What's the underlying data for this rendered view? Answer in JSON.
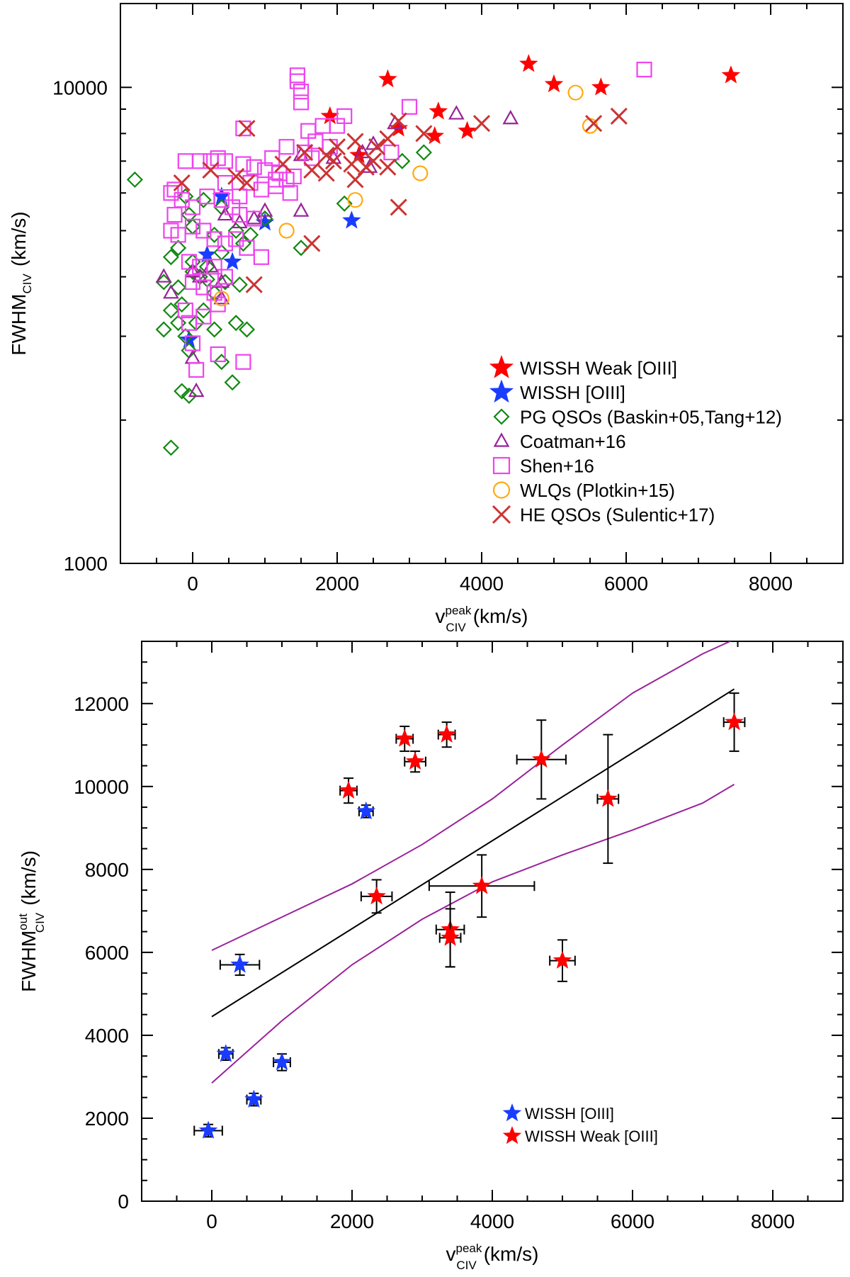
{
  "chart_data": [
    {
      "type": "scatter",
      "yscale": "log",
      "xlim": [
        -1000,
        9000
      ],
      "ylim": [
        1000,
        15000
      ],
      "xticks": [
        0,
        2000,
        4000,
        6000,
        8000
      ],
      "xtick_labels": [
        "0",
        "2000",
        "4000",
        "6000",
        "8000"
      ],
      "yticks": [
        1000,
        10000
      ],
      "ytick_labels": [
        "1000",
        "10000"
      ],
      "xlabel": {
        "base": "v",
        "sup": "peak",
        "sub": "CIV",
        "unit": "(km/s)"
      },
      "ylabel": {
        "base": "FWHM",
        "sub": "CIV",
        "unit": "(km/s)"
      },
      "legend_position": "bottom-right",
      "series": [
        {
          "name": "WISSH Weak [OIII]",
          "marker": "star",
          "color": "#ff0000",
          "points": [
            [
              4650,
              11200
            ],
            [
              7450,
              10600
            ],
            [
              2700,
              10400
            ],
            [
              5000,
              10150
            ],
            [
              5650,
              10000
            ],
            [
              1900,
              8700
            ],
            [
              3400,
              8900
            ],
            [
              2850,
              8200
            ],
            [
              3800,
              8100
            ],
            [
              3350,
              7900
            ],
            [
              2300,
              7200
            ]
          ]
        },
        {
          "name": "WISSH [OIII]",
          "marker": "star",
          "color": "#1a3cff",
          "points": [
            [
              400,
              5900
            ],
            [
              1000,
              5200
            ],
            [
              2200,
              5250
            ],
            [
              200,
              4450
            ],
            [
              550,
              4300
            ],
            [
              -50,
              2950
            ]
          ]
        },
        {
          "name": "PG QSOs (Baskin+05,Tang+12)",
          "marker": "diamond",
          "color": "#118811",
          "points": [
            [
              -800,
              6400
            ],
            [
              -100,
              5900
            ],
            [
              -50,
              5400
            ],
            [
              150,
              5800
            ],
            [
              300,
              4900
            ],
            [
              600,
              5000
            ],
            [
              -300,
              4400
            ],
            [
              -400,
              3900
            ],
            [
              -200,
              3800
            ],
            [
              0,
              4100
            ],
            [
              100,
              4000
            ],
            [
              200,
              3950
            ],
            [
              450,
              3900
            ],
            [
              650,
              3850
            ],
            [
              -150,
              3500
            ],
            [
              -300,
              3400
            ],
            [
              -200,
              3200
            ],
            [
              -400,
              3100
            ],
            [
              50,
              3200
            ],
            [
              300,
              3100
            ],
            [
              600,
              3200
            ],
            [
              750,
              3100
            ],
            [
              -100,
              3000
            ],
            [
              -50,
              2800
            ],
            [
              0,
              4300
            ],
            [
              200,
              4200
            ],
            [
              400,
              4500
            ],
            [
              700,
              4700
            ],
            [
              800,
              4900
            ],
            [
              1500,
              4600
            ],
            [
              2100,
              5700
            ],
            [
              2900,
              7000
            ],
            [
              3200,
              7300
            ],
            [
              400,
              2650
            ],
            [
              550,
              2400
            ],
            [
              -150,
              2300
            ],
            [
              -50,
              2250
            ],
            [
              -300,
              1750
            ],
            [
              -200,
              4600
            ],
            [
              0,
              5100
            ],
            [
              400,
              5600
            ],
            [
              1000,
              5300
            ],
            [
              300,
              3700
            ],
            [
              150,
              3400
            ]
          ]
        },
        {
          "name": "Coatman+16",
          "marker": "triangle",
          "color": "#992299",
          "points": [
            [
              -400,
              4000
            ],
            [
              -300,
              3700
            ],
            [
              100,
              4000
            ],
            [
              400,
              3600
            ],
            [
              400,
              3900
            ],
            [
              450,
              5400
            ],
            [
              650,
              5200
            ],
            [
              850,
              5300
            ],
            [
              1500,
              7200
            ],
            [
              1500,
              5500
            ],
            [
              1950,
              7100
            ],
            [
              2350,
              7300
            ],
            [
              2500,
              7600
            ],
            [
              2800,
              8400
            ],
            [
              3650,
              8800
            ],
            [
              4400,
              8600
            ],
            [
              0,
              2700
            ],
            [
              50,
              2300
            ],
            [
              0,
              4100
            ],
            [
              250,
              4200
            ],
            [
              2450,
              6800
            ],
            [
              1000,
              5500
            ]
          ]
        },
        {
          "name": "Shen+16",
          "marker": "square",
          "color": "#ee44ee",
          "points": [
            [
              1450,
              10600
            ],
            [
              1450,
              10300
            ],
            [
              1500,
              9800
            ],
            [
              1500,
              9300
            ],
            [
              3000,
              9100
            ],
            [
              6250,
              10900
            ],
            [
              1600,
              8100
            ],
            [
              1800,
              8300
            ],
            [
              700,
              8200
            ],
            [
              2000,
              8300
            ],
            [
              2100,
              8700
            ],
            [
              1300,
              7500
            ],
            [
              1550,
              7300
            ],
            [
              1700,
              7700
            ],
            [
              1900,
              7500
            ],
            [
              1100,
              7100
            ],
            [
              -100,
              7000
            ],
            [
              100,
              7000
            ],
            [
              250,
              7000
            ],
            [
              350,
              7100
            ],
            [
              450,
              7000
            ],
            [
              700,
              6900
            ],
            [
              850,
              6800
            ],
            [
              1000,
              6700
            ],
            [
              1200,
              6600
            ],
            [
              1300,
              6400
            ],
            [
              1400,
              6500
            ],
            [
              1150,
              6200
            ],
            [
              1350,
              6000
            ],
            [
              800,
              6300
            ],
            [
              950,
              6100
            ],
            [
              -250,
              6100
            ],
            [
              -150,
              5800
            ],
            [
              0,
              5600
            ],
            [
              200,
              5900
            ],
            [
              400,
              5800
            ],
            [
              550,
              5600
            ],
            [
              650,
              5400
            ],
            [
              850,
              5300
            ],
            [
              -250,
              5400
            ],
            [
              -300,
              5000
            ],
            [
              -200,
              4900
            ],
            [
              0,
              5100
            ],
            [
              150,
              5000
            ],
            [
              300,
              4800
            ],
            [
              450,
              4700
            ],
            [
              600,
              4800
            ],
            [
              750,
              4600
            ],
            [
              950,
              4400
            ],
            [
              -50,
              4300
            ],
            [
              100,
              4200
            ],
            [
              300,
              4200
            ],
            [
              450,
              4000
            ],
            [
              0,
              3900
            ],
            [
              150,
              3800
            ],
            [
              300,
              3700
            ],
            [
              350,
              3500
            ],
            [
              -100,
              3400
            ],
            [
              150,
              3300
            ],
            [
              -50,
              3200
            ],
            [
              0,
              2900
            ],
            [
              350,
              2750
            ],
            [
              700,
              2650
            ],
            [
              50,
              2550
            ],
            [
              1150,
              6400
            ],
            [
              1650,
              7100
            ],
            [
              2750,
              7300
            ],
            [
              -300,
              6000
            ],
            [
              450,
              6300
            ],
            [
              650,
              5900
            ]
          ]
        },
        {
          "name": "WLQs (Plotkin+15)",
          "marker": "circle",
          "color": "#ffaa11",
          "points": [
            [
              5300,
              9750
            ],
            [
              5500,
              8300
            ],
            [
              3150,
              6600
            ],
            [
              2250,
              5800
            ],
            [
              1300,
              5000
            ],
            [
              400,
              3600
            ]
          ]
        },
        {
          "name": "HE QSOs (Sulentic+17)",
          "marker": "cross",
          "color": "#cc3333",
          "points": [
            [
              750,
              8200
            ],
            [
              4000,
              8400
            ],
            [
              5900,
              8700
            ],
            [
              5550,
              8400
            ],
            [
              3200,
              8000
            ],
            [
              2850,
              8500
            ],
            [
              2700,
              7800
            ],
            [
              2550,
              7500
            ],
            [
              2250,
              7700
            ],
            [
              2000,
              7500
            ],
            [
              1850,
              7200
            ],
            [
              1550,
              7300
            ],
            [
              1250,
              6900
            ],
            [
              2200,
              6900
            ],
            [
              1650,
              6700
            ],
            [
              2700,
              6800
            ],
            [
              2500,
              7000
            ],
            [
              1850,
              6600
            ],
            [
              2250,
              6400
            ],
            [
              600,
              6500
            ],
            [
              750,
              6300
            ],
            [
              -150,
              6300
            ],
            [
              250,
              6700
            ],
            [
              1950,
              7000
            ],
            [
              2400,
              6800
            ],
            [
              2850,
              5600
            ],
            [
              1650,
              4700
            ],
            [
              850,
              3850
            ]
          ]
        }
      ]
    },
    {
      "type": "scatter",
      "xlim": [
        -1000,
        9000
      ],
      "ylim": [
        0,
        13500
      ],
      "xticks": [
        0,
        2000,
        4000,
        6000,
        8000
      ],
      "xtick_labels": [
        "0",
        "2000",
        "4000",
        "6000",
        "8000"
      ],
      "yticks": [
        0,
        2000,
        4000,
        6000,
        8000,
        10000,
        12000
      ],
      "ytick_labels": [
        "0",
        "2000",
        "4000",
        "6000",
        "8000",
        "10000",
        "12000"
      ],
      "xlabel": {
        "base": "v",
        "sup": "peak",
        "sub": "CIV",
        "unit": "(km/s)"
      },
      "ylabel": {
        "base": "FWHM",
        "sup": "out",
        "sub": "CIV",
        "unit": "(km/s)"
      },
      "legend_position": "bottom-center",
      "series": [
        {
          "name": "WISSH [OIII]",
          "marker": "star",
          "color": "#1a3cff",
          "points": [
            [
              -50,
              1700,
              200,
              150
            ],
            [
              200,
              3550,
              100,
              150
            ],
            [
              400,
              5700,
              280,
              250
            ],
            [
              600,
              2450,
              100,
              150
            ],
            [
              1000,
              3350,
              120,
              200
            ],
            [
              2200,
              9400,
              100,
              150
            ]
          ]
        },
        {
          "name": "WISSH Weak [OIII]",
          "marker": "star",
          "color": "#ff0000",
          "points": [
            [
              1950,
              9900,
              120,
              300
            ],
            [
              2350,
              7350,
              220,
              400
            ],
            [
              2750,
              11150,
              120,
              300
            ],
            [
              2900,
              10600,
              150,
              250
            ],
            [
              3350,
              11250,
              120,
              300
            ],
            [
              3400,
              6550,
              200,
              900
            ],
            [
              3400,
              6350,
              150,
              700
            ],
            [
              3850,
              7600,
              750,
              750
            ],
            [
              4700,
              10650,
              350,
              950
            ],
            [
              5650,
              9700,
              150,
              1550
            ],
            [
              5000,
              5800,
              180,
              500
            ],
            [
              7450,
              11550,
              150,
              700
            ]
          ]
        }
      ],
      "fit_line": {
        "name": "best fit",
        "color": "#000000",
        "x": [
          0,
          7450
        ],
        "y": [
          4450,
          12350
        ]
      },
      "confidence_band": {
        "color": "#992299",
        "upper": {
          "x": [
            0,
            1000,
            2000,
            3000,
            4000,
            5000,
            6000,
            7000,
            7650
          ],
          "y": [
            6050,
            6850,
            7650,
            8600,
            9700,
            11000,
            12250,
            13200,
            13700
          ]
        },
        "lower": {
          "x": [
            0,
            1000,
            2000,
            3000,
            4000,
            5000,
            6000,
            7000,
            7450
          ],
          "y": [
            2850,
            4350,
            5700,
            6800,
            7700,
            8350,
            8950,
            9600,
            10050
          ]
        }
      }
    }
  ]
}
